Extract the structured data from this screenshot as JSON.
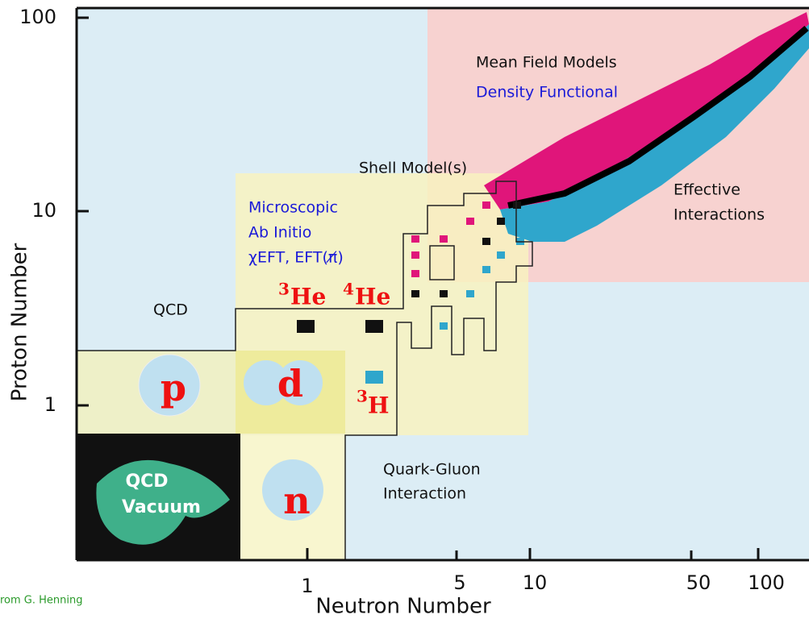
{
  "axes": {
    "x_label": "Neutron Number",
    "y_label": "Proton Number",
    "x_ticks": [
      1,
      5,
      10,
      50,
      100
    ],
    "y_ticks": [
      1,
      10,
      100
    ]
  },
  "regions": {
    "mean_field": "Mean Field Models",
    "density_functional": "Density Functional",
    "shell_model": "Shell Model(s)",
    "effective": [
      "Effective",
      "Interactions"
    ],
    "ab_initio": [
      "Microscopic",
      "Ab Initio",
      "χEFT, EFT(π̸)"
    ],
    "qcd": "QCD",
    "quark_gluon": [
      "Quark-Gluon",
      "Interaction"
    ],
    "qcd_vacuum": [
      "QCD",
      "Vacuum"
    ]
  },
  "nuclei": {
    "proton": "p",
    "deuteron": "d",
    "neutron": "n",
    "helium3": {
      "mass": "3",
      "symbol": "He"
    },
    "helium4": {
      "mass": "4",
      "symbol": "He"
    },
    "tritium": {
      "mass": "3",
      "symbol": "H"
    }
  },
  "credit": "rom G. Henning"
}
